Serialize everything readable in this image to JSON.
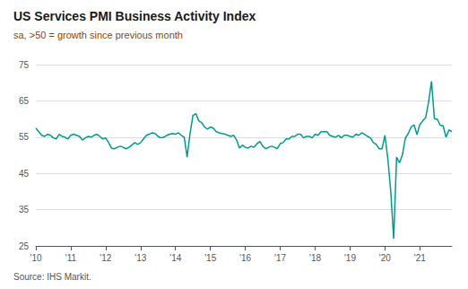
{
  "chart_data": {
    "type": "line",
    "title": "US Services PMI Business Activity Index",
    "subtitle": "sa, >50 = growth since previous month",
    "source": "Source: IHS Markit.",
    "categories": [
      "'10",
      null,
      null,
      null,
      null,
      null,
      null,
      null,
      null,
      null,
      null,
      null,
      "'11",
      null,
      null,
      null,
      null,
      null,
      null,
      null,
      null,
      null,
      null,
      null,
      "'12",
      null,
      null,
      null,
      null,
      null,
      null,
      null,
      null,
      null,
      null,
      null,
      "'13",
      null,
      null,
      null,
      null,
      null,
      null,
      null,
      null,
      null,
      null,
      null,
      "'14",
      null,
      null,
      null,
      null,
      null,
      null,
      null,
      null,
      null,
      null,
      null,
      "'15",
      null,
      null,
      null,
      null,
      null,
      null,
      null,
      null,
      null,
      null,
      null,
      "'16",
      null,
      null,
      null,
      null,
      null,
      null,
      null,
      null,
      null,
      null,
      null,
      "'17",
      null,
      null,
      null,
      null,
      null,
      null,
      null,
      null,
      null,
      null,
      null,
      "'18",
      null,
      null,
      null,
      null,
      null,
      null,
      null,
      null,
      null,
      null,
      null,
      "'19",
      null,
      null,
      null,
      null,
      null,
      null,
      null,
      null,
      null,
      null,
      null,
      "'20",
      null,
      null,
      null,
      null,
      null,
      null,
      null,
      null,
      null,
      null,
      null,
      "'21",
      null,
      null,
      null,
      null,
      null,
      null,
      null,
      null,
      null,
      null,
      null
    ],
    "values": [
      57.5,
      56.5,
      55.5,
      55.2,
      55.8,
      55.5,
      54.8,
      54.5,
      55.8,
      55.2,
      55.0,
      54.5,
      55.5,
      55.8,
      55.5,
      55.2,
      54.2,
      54.8,
      55.2,
      55.0,
      55.5,
      55.8,
      55.2,
      54.5,
      54.8,
      53.5,
      52.0,
      51.8,
      52.2,
      52.5,
      52.2,
      51.8,
      52.2,
      52.8,
      53.5,
      53.0,
      53.5,
      54.5,
      55.5,
      55.8,
      56.2,
      56.0,
      55.2,
      54.8,
      55.0,
      55.5,
      55.8,
      56.0,
      55.8,
      56.2,
      55.5,
      55.0,
      49.5,
      56.0,
      61.0,
      61.5,
      59.5,
      59.0,
      57.8,
      57.2,
      57.8,
      57.5,
      56.5,
      56.2,
      56.0,
      55.8,
      55.5,
      55.2,
      55.5,
      54.2,
      52.0,
      52.8,
      52.2,
      52.0,
      52.5,
      52.2,
      53.2,
      53.8,
      52.5,
      51.8,
      52.2,
      52.5,
      52.2,
      51.8,
      53.2,
      53.5,
      54.5,
      54.5,
      55.2,
      55.2,
      55.8,
      55.8,
      54.8,
      55.2,
      55.2,
      54.8,
      55.8,
      55.5,
      56.5,
      56.5,
      56.5,
      55.5,
      55.2,
      55.0,
      55.5,
      54.8,
      55.5,
      55.5,
      55.2,
      55.0,
      55.8,
      55.5,
      56.2,
      55.8,
      55.2,
      54.8,
      53.5,
      53.0,
      51.8,
      51.8,
      55.5,
      49.0,
      40.0,
      27.0,
      49.5,
      47.9,
      50.1,
      54.7,
      56.0,
      57.8,
      58.4,
      55.7,
      58.5,
      59.5,
      60.4,
      64.7,
      70.4,
      60.1,
      59.9,
      58.3,
      58.1,
      55.0,
      57.0,
      56.5
    ],
    "color": "#009B8D",
    "ylim": [
      25,
      75
    ],
    "yticks": [
      25,
      35,
      45,
      55,
      65,
      75
    ],
    "grid": true
  }
}
